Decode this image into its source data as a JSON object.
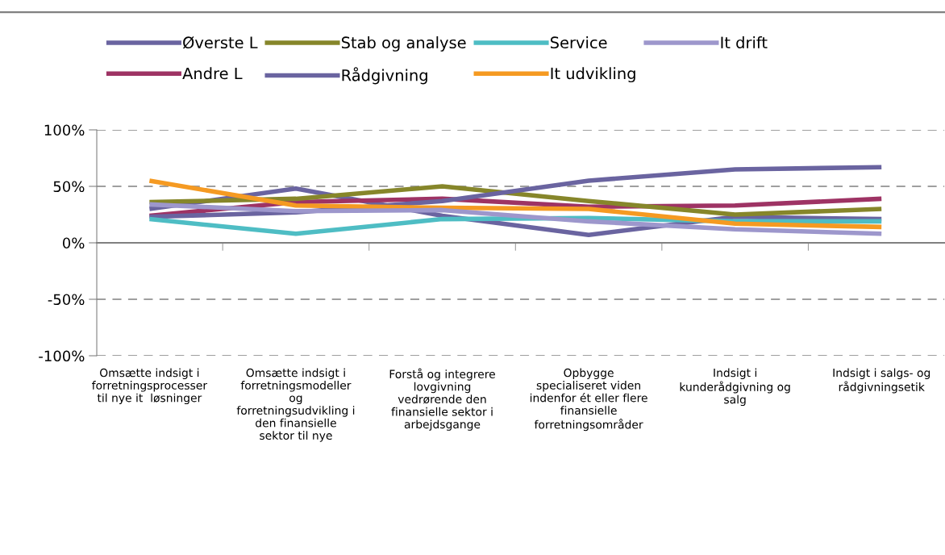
{
  "chart_data": {
    "type": "line",
    "categories": [
      "Omsætte indsigt i\nforretningsprocesser\ntil nye it  løsninger",
      "Omsætte indsigt i\nforretningsmodeller\nog\nforretningsudvikling i\nden finansielle\nsektor til nye",
      "Forstå og integrere\nlovgivning\nvedrørende den\nfinansielle sektor i\narbejdsgange",
      "Opbygge\nspecialiseret viden\nindenfor ét eller flere\nfinansielle\nforretningsområder",
      "Indsigt i\nkunderådgivning og\nsalg",
      "Indsigt i salgs- og\nrådgivningsetik"
    ],
    "series": [
      {
        "name": "Øverste L",
        "color": "#6a64a0",
        "values": [
          30,
          48,
          24,
          7,
          23,
          21
        ]
      },
      {
        "name": "Andre L",
        "color": "#9e3364",
        "values": [
          24,
          36,
          39,
          32,
          33,
          39
        ]
      },
      {
        "name": "Stab og analyse",
        "color": "#86862a",
        "values": [
          36,
          39,
          50,
          37,
          25,
          30
        ]
      },
      {
        "name": "Rådgivning",
        "color": "#6a64a0",
        "values": [
          23,
          27,
          37,
          55,
          65,
          67
        ]
      },
      {
        "name": "Service",
        "color": "#4ebdc4",
        "values": [
          21,
          8,
          21,
          22,
          19,
          19
        ]
      },
      {
        "name": "It udvikling",
        "color": "#f59a22",
        "values": [
          55,
          33,
          31,
          30,
          17,
          14
        ]
      },
      {
        "name": "It drift",
        "color": "#9d97cc",
        "values": [
          34,
          28,
          29,
          19,
          12,
          8
        ]
      }
    ],
    "ylim": [
      -100,
      100
    ],
    "yticks": [
      {
        "value": -100,
        "label": "-100%"
      },
      {
        "value": -50,
        "label": "-50%"
      },
      {
        "value": 0,
        "label": "0%"
      },
      {
        "value": 50,
        "label": "50%"
      },
      {
        "value": 100,
        "label": "100%"
      }
    ],
    "grid": "y",
    "legend": "top",
    "marker": "none",
    "line_style": "solid"
  }
}
